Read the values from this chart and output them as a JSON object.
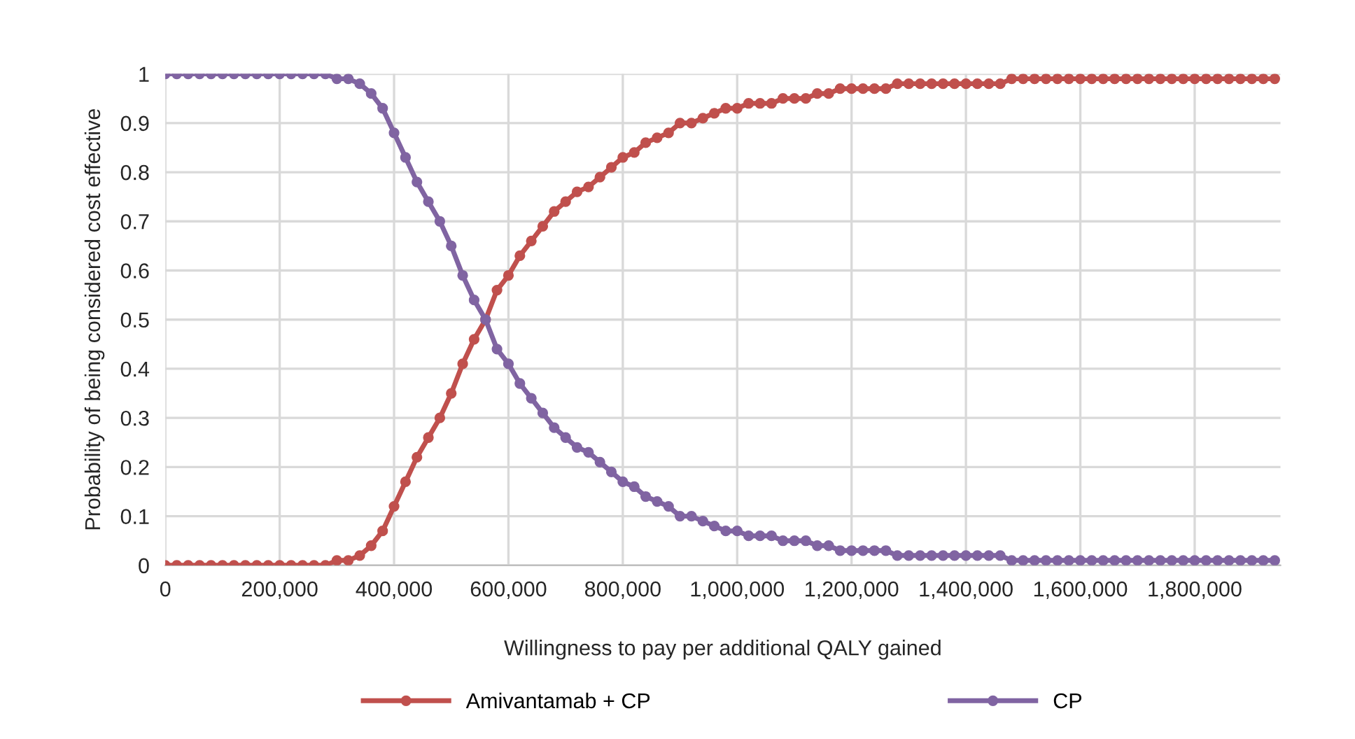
{
  "chart_data": {
    "type": "line",
    "xlabel": "Willingness to pay per additional QALY gained",
    "ylabel": "Probability of being considered cost effective",
    "x": [
      0,
      20000,
      40000,
      60000,
      80000,
      100000,
      120000,
      140000,
      160000,
      180000,
      200000,
      220000,
      240000,
      260000,
      280000,
      300000,
      320000,
      340000,
      360000,
      380000,
      400000,
      420000,
      440000,
      460000,
      480000,
      500000,
      520000,
      540000,
      560000,
      580000,
      600000,
      620000,
      640000,
      660000,
      680000,
      700000,
      720000,
      740000,
      760000,
      780000,
      800000,
      820000,
      840000,
      860000,
      880000,
      900000,
      920000,
      940000,
      960000,
      980000,
      1000000,
      1020000,
      1040000,
      1060000,
      1080000,
      1100000,
      1120000,
      1140000,
      1160000,
      1180000,
      1200000,
      1220000,
      1240000,
      1260000,
      1280000,
      1300000,
      1320000,
      1340000,
      1360000,
      1380000,
      1400000,
      1420000,
      1440000,
      1460000,
      1480000,
      1500000,
      1520000,
      1540000,
      1560000,
      1580000,
      1600000,
      1620000,
      1640000,
      1660000,
      1680000,
      1700000,
      1720000,
      1740000,
      1760000,
      1780000,
      1800000,
      1820000,
      1840000,
      1860000,
      1880000,
      1900000,
      1920000,
      1940000
    ],
    "series": [
      {
        "name": "Amivantamab + CP",
        "color": "#c0504d",
        "values": [
          0,
          0,
          0,
          0,
          0,
          0,
          0,
          0,
          0,
          0,
          0,
          0,
          0,
          0,
          0,
          0.01,
          0.01,
          0.02,
          0.04,
          0.07,
          0.12,
          0.17,
          0.22,
          0.26,
          0.3,
          0.35,
          0.41,
          0.46,
          0.5,
          0.56,
          0.59,
          0.63,
          0.66,
          0.69,
          0.72,
          0.74,
          0.76,
          0.77,
          0.79,
          0.81,
          0.83,
          0.84,
          0.86,
          0.87,
          0.88,
          0.9,
          0.9,
          0.91,
          0.92,
          0.93,
          0.93,
          0.94,
          0.94,
          0.94,
          0.95,
          0.95,
          0.95,
          0.96,
          0.96,
          0.97,
          0.97,
          0.97,
          0.97,
          0.97,
          0.98,
          0.98,
          0.98,
          0.98,
          0.98,
          0.98,
          0.98,
          0.98,
          0.98,
          0.98,
          0.99,
          0.99,
          0.99,
          0.99,
          0.99,
          0.99,
          0.99,
          0.99,
          0.99,
          0.99,
          0.99,
          0.99,
          0.99,
          0.99,
          0.99,
          0.99,
          0.99,
          0.99,
          0.99,
          0.99,
          0.99,
          0.99,
          0.99,
          0.99
        ]
      },
      {
        "name": "CP",
        "color": "#8064a2",
        "values": [
          1,
          1,
          1,
          1,
          1,
          1,
          1,
          1,
          1,
          1,
          1,
          1,
          1,
          1,
          1,
          0.99,
          0.99,
          0.98,
          0.96,
          0.93,
          0.88,
          0.83,
          0.78,
          0.74,
          0.7,
          0.65,
          0.59,
          0.54,
          0.5,
          0.44,
          0.41,
          0.37,
          0.34,
          0.31,
          0.28,
          0.26,
          0.24,
          0.23,
          0.21,
          0.19,
          0.17,
          0.16,
          0.14,
          0.13,
          0.12,
          0.1,
          0.1,
          0.09,
          0.08,
          0.07,
          0.07,
          0.06,
          0.06,
          0.06,
          0.05,
          0.05,
          0.05,
          0.04,
          0.04,
          0.03,
          0.03,
          0.03,
          0.03,
          0.03,
          0.02,
          0.02,
          0.02,
          0.02,
          0.02,
          0.02,
          0.02,
          0.02,
          0.02,
          0.02,
          0.01,
          0.01,
          0.01,
          0.01,
          0.01,
          0.01,
          0.01,
          0.01,
          0.01,
          0.01,
          0.01,
          0.01,
          0.01,
          0.01,
          0.01,
          0.01,
          0.01,
          0.01,
          0.01,
          0.01,
          0.01,
          0.01,
          0.01,
          0.01
        ]
      }
    ],
    "xlim": [
      0,
      1950000
    ],
    "xticks": [
      0,
      {
        "value": 200000,
        "label": "200,000"
      },
      {
        "value": 400000,
        "label": "400,000"
      },
      {
        "value": 600000,
        "label": "600,000"
      },
      {
        "value": 800000,
        "label": "800,000"
      },
      {
        "value": 1000000,
        "label": "1,000,000"
      },
      {
        "value": 1200000,
        "label": "1,200,000"
      },
      {
        "value": 1400000,
        "label": "1,400,000"
      },
      {
        "value": 1600000,
        "label": "1,600,000"
      },
      {
        "value": 1800000,
        "label": "1,800,000"
      }
    ],
    "ylim": [
      0,
      1
    ],
    "yticks": [
      0,
      0.1,
      0.2,
      0.3,
      0.4,
      0.5,
      0.6,
      0.7,
      0.8,
      0.9,
      1
    ],
    "grid": true,
    "legend": "bottom",
    "marker": "circle",
    "line_style": "solid"
  }
}
